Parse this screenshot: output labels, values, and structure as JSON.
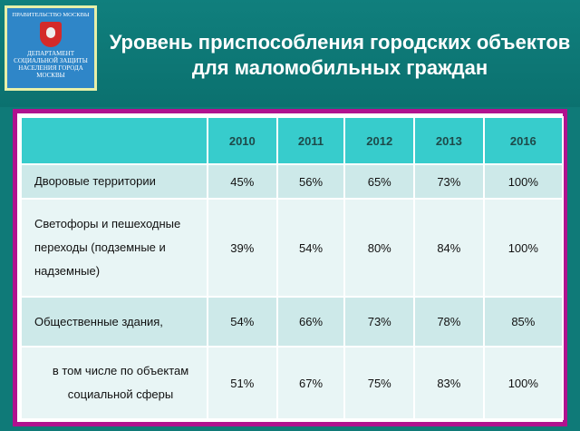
{
  "logo": {
    "top": "ПРАВИТЕЛЬСТВО МОСКВЫ",
    "bottom": "ДЕПАРТАМЕНТ СОЦИАЛЬНОЙ ЗАЩИТЫ НАСЕЛЕНИЯ ГОРОДА МОСКВЫ"
  },
  "title": "Уровень приспособления городских объектов для маломобильных граждан",
  "table": {
    "headers": [
      "",
      "2010",
      "2011",
      "2012",
      "2013",
      "2016"
    ],
    "rows": [
      {
        "label": "Дворовые территории",
        "values": [
          "45%",
          "56%",
          "65%",
          "73%",
          "100%"
        ]
      },
      {
        "label": "Светофоры и пешеходные переходы (подземные и надземные)",
        "values": [
          "39%",
          "54%",
          "80%",
          "84%",
          "100%"
        ]
      },
      {
        "label": "Общественные здания,",
        "values": [
          "54%",
          "66%",
          "73%",
          "78%",
          "85%"
        ]
      },
      {
        "label": "в том числе по объектам социальной сферы",
        "values": [
          "51%",
          "67%",
          "75%",
          "83%",
          "100%"
        ]
      }
    ]
  }
}
